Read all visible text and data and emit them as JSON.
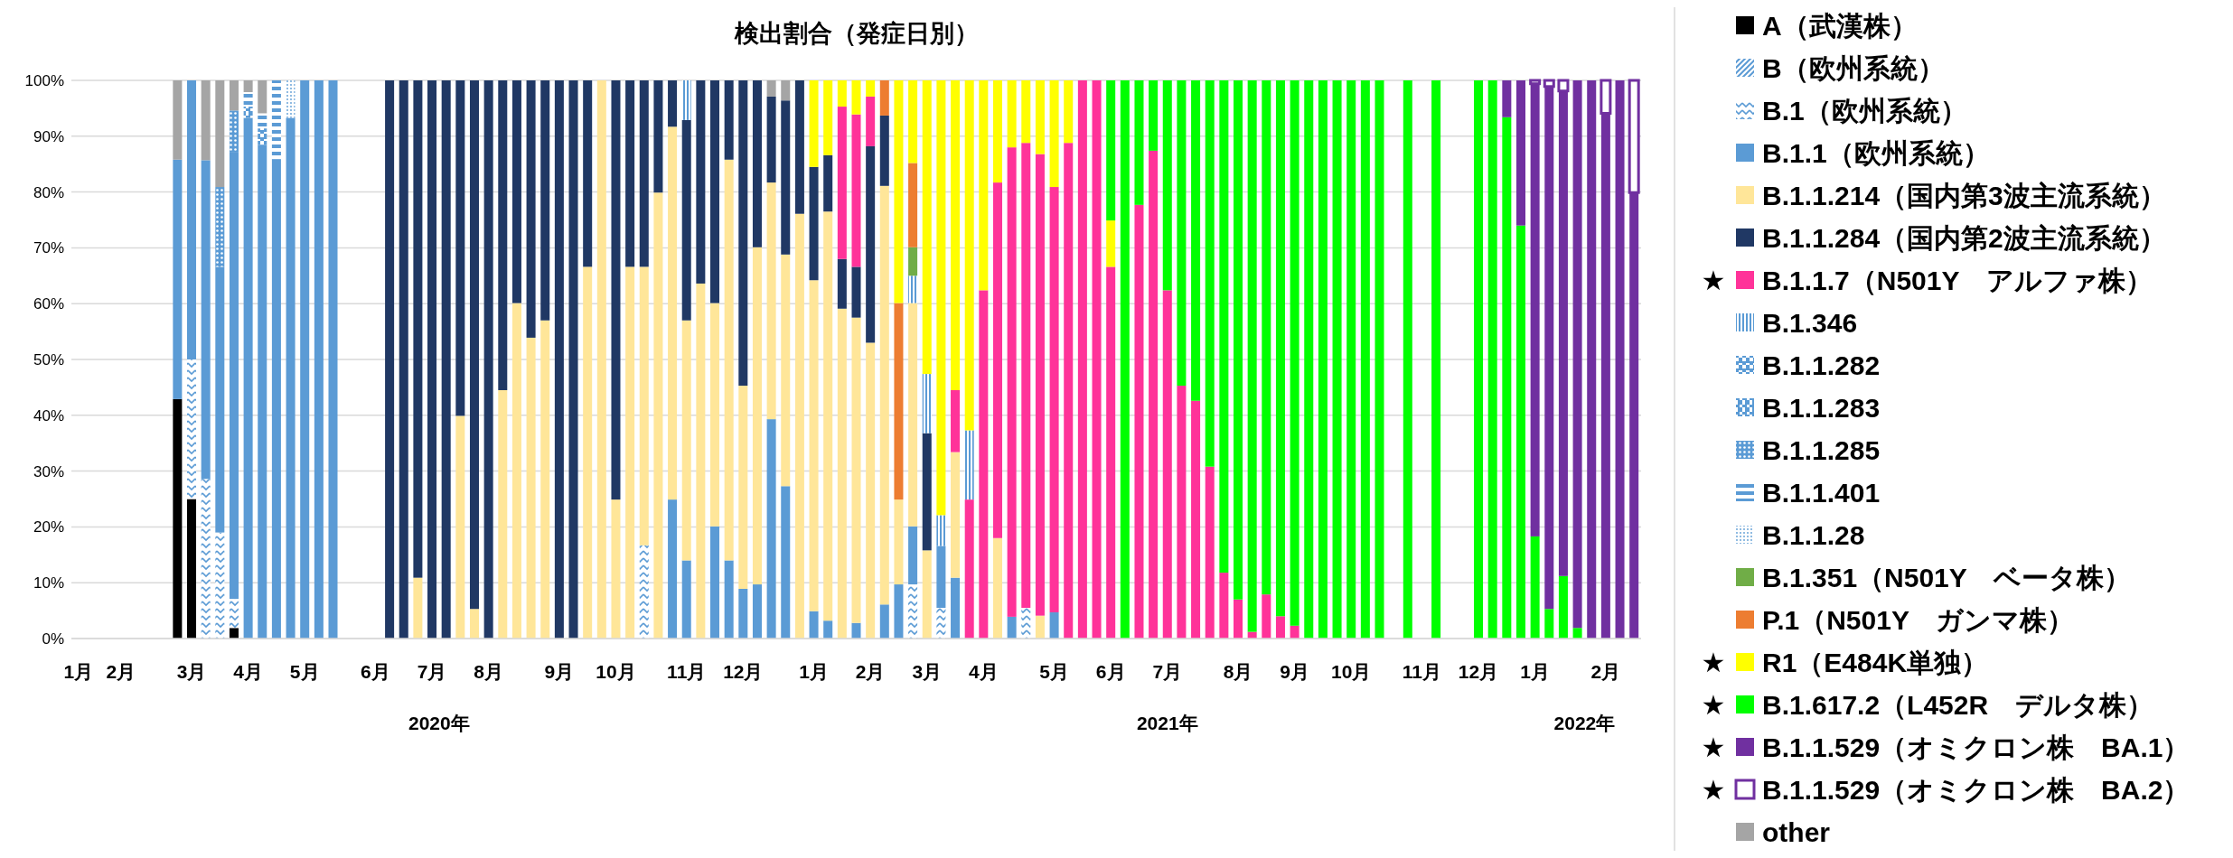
{
  "chart_data": {
    "type": "bar",
    "stacked": true,
    "title": "検出割合（発症日別）",
    "categories": [
      "1月",
      null,
      null,
      "2月",
      null,
      null,
      null,
      null,
      "3月",
      null,
      null,
      null,
      "4月",
      null,
      null,
      null,
      "5月",
      null,
      null,
      null,
      null,
      "6月",
      null,
      null,
      null,
      "7月",
      null,
      null,
      null,
      "8月",
      null,
      null,
      null,
      null,
      "9月",
      null,
      null,
      null,
      "10月",
      null,
      null,
      null,
      null,
      "11月",
      null,
      null,
      null,
      "12月",
      null,
      null,
      null,
      null,
      "1月",
      null,
      null,
      null,
      "2月",
      null,
      null,
      null,
      "3月",
      null,
      null,
      null,
      "4月",
      null,
      null,
      null,
      null,
      "5月",
      null,
      null,
      null,
      "6月",
      null,
      null,
      null,
      "7月",
      null,
      null,
      null,
      null,
      "8月",
      null,
      null,
      null,
      "9月",
      null,
      null,
      null,
      "10月",
      null,
      null,
      null,
      null,
      "11月",
      null,
      null,
      null,
      "12月",
      null,
      null,
      null,
      "1月",
      null,
      null,
      null,
      null,
      "2月",
      null,
      null
    ],
    "ylim": [
      0,
      100
    ],
    "yticks": [
      {
        "value": 0,
        "label": "0%"
      },
      {
        "value": 10,
        "label": "10%"
      },
      {
        "value": 20,
        "label": "20%"
      },
      {
        "value": 30,
        "label": "30%"
      },
      {
        "value": 40,
        "label": "40%"
      },
      {
        "value": 50,
        "label": "50%"
      },
      {
        "value": 60,
        "label": "60%"
      },
      {
        "value": 70,
        "label": "70%"
      },
      {
        "value": 80,
        "label": "80%"
      },
      {
        "value": 90,
        "label": "90%"
      },
      {
        "value": 100,
        "label": "100%"
      }
    ],
    "grid": "y",
    "legend": "right",
    "annotations": [
      "2020年",
      "2021年",
      "2022年"
    ],
    "series": [
      {
        "name": "A（武漢株）",
        "color": "#000000",
        "values": [
          null,
          null,
          null,
          null,
          null,
          null,
          null,
          42.9,
          25,
          null,
          null,
          1.9,
          null,
          null,
          null,
          null,
          null,
          null,
          null,
          null,
          null,
          null,
          null,
          null,
          null,
          null,
          null,
          null,
          null,
          null,
          null,
          null,
          null,
          null,
          null,
          null,
          null,
          null,
          null,
          null,
          null,
          null,
          null,
          null,
          null,
          null,
          null,
          null,
          null,
          null,
          null,
          null,
          null,
          null,
          null,
          null,
          null,
          null,
          null,
          null,
          null,
          null,
          null,
          null,
          null,
          null,
          null,
          null,
          null,
          null,
          null,
          null,
          null,
          null,
          null,
          null,
          null,
          null,
          null,
          null,
          null,
          null,
          null,
          null,
          null,
          null,
          null,
          null,
          null,
          null,
          null,
          null,
          null,
          null,
          null,
          null,
          null,
          null,
          null,
          null,
          null,
          null,
          null,
          null,
          null,
          null,
          null,
          null,
          null,
          null,
          null
        ]
      },
      {
        "name": "B（欧州系統）",
        "color": "#5b9bd5",
        "values": [
          null,
          null,
          null,
          null,
          null,
          null,
          null,
          null,
          null,
          null,
          null,
          null,
          null,
          null,
          null,
          null,
          null,
          null,
          null,
          null,
          null,
          null,
          null,
          null,
          null,
          null,
          null,
          null,
          null,
          null,
          null,
          null,
          null,
          null,
          null,
          null,
          null,
          null,
          null,
          null,
          null,
          null,
          null,
          null,
          null,
          null,
          null,
          null,
          null,
          null,
          null,
          null,
          null,
          null,
          null,
          null,
          null,
          null,
          null,
          null,
          null,
          null,
          null,
          null,
          null,
          null,
          null,
          null,
          null,
          null,
          null,
          null,
          null,
          null,
          null,
          null,
          null,
          null,
          null,
          null,
          null,
          null,
          null,
          null,
          null,
          null,
          null,
          null,
          null,
          null,
          null,
          null,
          null,
          null,
          null,
          null,
          null,
          null,
          null,
          null,
          null,
          null,
          null,
          null,
          null,
          null,
          null,
          null,
          null,
          null,
          null
        ]
      },
      {
        "name": "B.1（欧州系統）",
        "color": "#5b9bd5",
        "values": [
          null,
          null,
          null,
          null,
          null,
          null,
          null,
          null,
          25,
          28.6,
          19.0,
          5.2,
          null,
          null,
          null,
          null,
          null,
          null,
          null,
          null,
          null,
          null,
          null,
          null,
          null,
          null,
          null,
          null,
          null,
          null,
          null,
          null,
          null,
          null,
          null,
          null,
          null,
          null,
          null,
          null,
          16.7,
          null,
          null,
          null,
          null,
          null,
          null,
          null,
          null,
          null,
          null,
          null,
          null,
          null,
          null,
          null,
          null,
          null,
          null,
          9.7,
          null,
          5.5,
          null,
          null,
          null,
          null,
          null,
          5.5,
          null,
          null,
          null,
          null,
          null,
          null,
          null,
          null,
          null,
          null,
          null,
          null,
          null,
          null,
          null,
          null,
          null,
          null,
          null,
          null,
          null,
          null,
          null,
          null,
          null,
          null,
          null,
          null,
          null,
          null,
          null,
          null,
          null,
          null,
          null,
          null,
          null,
          null,
          null,
          null,
          null,
          null,
          null
        ]
      },
      {
        "name": "B.1.1（欧州系統）",
        "color": "#5b9bd5",
        "values": [
          null,
          null,
          null,
          null,
          null,
          null,
          null,
          42.9,
          50,
          57.1,
          47.6,
          80.1,
          93.3,
          88.4,
          85.8,
          93.3,
          100,
          100,
          100,
          null,
          null,
          null,
          null,
          null,
          null,
          null,
          null,
          null,
          null,
          null,
          null,
          null,
          null,
          null,
          null,
          null,
          null,
          null,
          null,
          null,
          null,
          null,
          24.9,
          14.0,
          null,
          20.1,
          14.0,
          8.9,
          9.7,
          39.3,
          27.3,
          null,
          4.9,
          3.2,
          null,
          2.8,
          null,
          6.1,
          9.7,
          10.4,
          null,
          11.1,
          10.9,
          null,
          null,
          null,
          3.9,
          null,
          null,
          4.7,
          null,
          null,
          null,
          null,
          null,
          null,
          null,
          null,
          null,
          null,
          null,
          null,
          null,
          null,
          null,
          null,
          null,
          null,
          null,
          null,
          null,
          null,
          null,
          null,
          null,
          null,
          null,
          null,
          null,
          null,
          null,
          null,
          null,
          null,
          null,
          null,
          null,
          null,
          null,
          null,
          null
        ]
      },
      {
        "name": "B.1.1.214（国内第3波主流系統）",
        "color": "#ffe699",
        "values": [
          null,
          null,
          null,
          null,
          null,
          null,
          null,
          null,
          null,
          null,
          null,
          null,
          null,
          null,
          null,
          null,
          null,
          null,
          null,
          null,
          null,
          null,
          null,
          null,
          10.9,
          null,
          null,
          39.9,
          5.3,
          null,
          44.5,
          60.1,
          53.9,
          57.0,
          null,
          null,
          66.6,
          100,
          24.9,
          66.6,
          49.9,
          79.9,
          66.8,
          43.0,
          63.6,
          40.0,
          71.8,
          36.4,
          60.4,
          42.4,
          41.5,
          76.1,
          59.3,
          73.3,
          59.1,
          54.7,
          53.0,
          75.0,
          15.2,
          40.0,
          15.8,
          null,
          22.5,
          null,
          null,
          18.0,
          null,
          null,
          4.1,
          null,
          null,
          null,
          null,
          null,
          null,
          null,
          null,
          null,
          null,
          null,
          null,
          null,
          null,
          null,
          null,
          null,
          null,
          null,
          null,
          null,
          null,
          null,
          null,
          null,
          null,
          null,
          null,
          null,
          null,
          null,
          null,
          null,
          null,
          null,
          null,
          null,
          null,
          null,
          null,
          null,
          null
        ]
      },
      {
        "name": "B.1.1.284（国内第2波主流系統）",
        "color": "#203864",
        "values": [
          null,
          null,
          null,
          null,
          null,
          null,
          null,
          null,
          null,
          null,
          null,
          null,
          null,
          null,
          null,
          null,
          null,
          null,
          null,
          null,
          null,
          null,
          100,
          100,
          89.1,
          100,
          100,
          60.1,
          94.7,
          100,
          55.5,
          39.9,
          46.1,
          43.0,
          100,
          100,
          33.4,
          null,
          75.1,
          33.4,
          33.4,
          20.1,
          8.3,
          35.9,
          36.4,
          39.9,
          14.2,
          54.7,
          29.9,
          15.4,
          27.6,
          23.9,
          20.3,
          10.1,
          8.9,
          9.1,
          35.2,
          12.6,
          null,
          null,
          21.0,
          null,
          null,
          null,
          null,
          null,
          null,
          null,
          null,
          null,
          null,
          null,
          null,
          null,
          null,
          null,
          null,
          null,
          null,
          null,
          null,
          null,
          null,
          null,
          null,
          null,
          null,
          null,
          null,
          null,
          null,
          null,
          null,
          null,
          null,
          null,
          null,
          null,
          null,
          null,
          null,
          null,
          null,
          null,
          null,
          null,
          null,
          null,
          null,
          null,
          null
        ]
      },
      {
        "name": "★ B.1.1.7（N501Y　アルファ株）",
        "color": "#ff3399",
        "values": [
          null,
          null,
          null,
          null,
          null,
          null,
          null,
          null,
          null,
          null,
          null,
          null,
          null,
          null,
          null,
          null,
          null,
          null,
          null,
          null,
          null,
          null,
          null,
          null,
          null,
          null,
          null,
          null,
          null,
          null,
          null,
          null,
          null,
          null,
          null,
          null,
          null,
          null,
          null,
          null,
          null,
          null,
          null,
          null,
          null,
          null,
          null,
          null,
          null,
          null,
          null,
          null,
          null,
          null,
          27.3,
          27.3,
          8.9,
          null,
          null,
          null,
          null,
          null,
          11.1,
          24.9,
          62.4,
          63.7,
          84.1,
          83.3,
          82.7,
          76.2,
          88.8,
          100,
          100,
          66.6,
          null,
          77.7,
          87.4,
          62.4,
          45.3,
          42.6,
          30.8,
          11.8,
          7.0,
          1.2,
          7.9,
          4.0,
          2.3,
          null,
          null,
          null,
          null,
          null,
          null,
          null,
          null,
          null,
          null,
          null,
          null,
          null,
          null,
          null,
          null,
          null,
          null,
          null,
          null,
          null,
          null,
          null,
          null
        ]
      },
      {
        "name": "B.1.346",
        "color": "#5b9bd5",
        "values": [
          null,
          null,
          null,
          null,
          null,
          null,
          null,
          null,
          null,
          null,
          null,
          null,
          null,
          null,
          null,
          null,
          null,
          null,
          null,
          null,
          null,
          null,
          null,
          null,
          null,
          null,
          null,
          null,
          null,
          null,
          null,
          null,
          null,
          null,
          null,
          null,
          null,
          null,
          null,
          null,
          null,
          null,
          null,
          7.1,
          null,
          null,
          null,
          null,
          null,
          null,
          null,
          null,
          null,
          null,
          null,
          null,
          null,
          null,
          null,
          4.9,
          10.6,
          5.5,
          null,
          12.4,
          null,
          null,
          null,
          null,
          null,
          null,
          null,
          null,
          null,
          null,
          null,
          null,
          null,
          null,
          null,
          null,
          null,
          null,
          null,
          null,
          null,
          null,
          null,
          null,
          null,
          null,
          null,
          null,
          null,
          null,
          null,
          null,
          null,
          null,
          null,
          null,
          null,
          null,
          null,
          null,
          null,
          null,
          null,
          null,
          null,
          null,
          null
        ]
      },
      {
        "name": "B.1.1.282",
        "color": "#5b9bd5",
        "values": [
          null,
          null,
          null,
          null,
          null,
          null,
          null,
          null,
          null,
          null,
          null,
          null,
          null,
          3.0,
          null,
          null,
          null,
          null,
          null,
          null,
          null,
          null,
          null,
          null,
          null,
          null,
          null,
          null,
          null,
          null,
          null,
          null,
          null,
          null,
          null,
          null,
          null,
          null,
          null,
          null,
          null,
          null,
          null,
          null,
          null,
          null,
          null,
          null,
          null,
          null,
          null,
          null,
          null,
          null,
          null,
          null,
          null,
          null,
          null,
          null,
          null,
          null,
          null,
          null,
          null,
          null,
          null,
          null,
          null,
          null,
          null,
          null,
          null,
          null,
          null,
          null,
          null,
          null,
          null,
          null,
          null,
          null,
          null,
          null,
          null,
          null,
          null,
          null,
          null,
          null,
          null,
          null,
          null,
          null,
          null,
          null,
          null,
          null,
          null,
          null,
          null,
          null,
          null,
          null,
          null,
          null,
          null,
          null,
          null,
          null,
          null
        ]
      },
      {
        "name": "B.1.1.283",
        "color": "#5b9bd5",
        "values": [
          null,
          null,
          null,
          null,
          null,
          null,
          null,
          null,
          null,
          null,
          null,
          null,
          2.0,
          null,
          null,
          null,
          null,
          null,
          null,
          null,
          null,
          null,
          null,
          null,
          null,
          null,
          null,
          null,
          null,
          null,
          null,
          null,
          null,
          null,
          null,
          null,
          null,
          null,
          null,
          null,
          null,
          null,
          null,
          null,
          null,
          null,
          null,
          null,
          null,
          null,
          null,
          null,
          null,
          null,
          null,
          null,
          null,
          null,
          null,
          null,
          null,
          null,
          null,
          null,
          null,
          null,
          null,
          null,
          null,
          null,
          null,
          null,
          null,
          null,
          null,
          null,
          null,
          null,
          null,
          null,
          null,
          null,
          null,
          null,
          null,
          null,
          null,
          null,
          null,
          null,
          null,
          null,
          null,
          null,
          null,
          null,
          null,
          null,
          null,
          null,
          null,
          null,
          null,
          null,
          null,
          null,
          null,
          null,
          null,
          null,
          null
        ]
      },
      {
        "name": "B.1.1.285",
        "color": "#5b9bd5",
        "values": [
          null,
          null,
          null,
          null,
          null,
          null,
          null,
          null,
          null,
          null,
          14.3,
          7.4,
          null,
          null,
          null,
          null,
          null,
          null,
          null,
          null,
          null,
          null,
          null,
          null,
          null,
          null,
          null,
          null,
          null,
          null,
          null,
          null,
          null,
          null,
          null,
          null,
          null,
          null,
          null,
          null,
          null,
          null,
          null,
          null,
          null,
          null,
          null,
          null,
          null,
          null,
          null,
          null,
          null,
          null,
          null,
          null,
          null,
          null,
          null,
          null,
          null,
          null,
          null,
          null,
          null,
          null,
          null,
          null,
          null,
          null,
          null,
          null,
          null,
          null,
          null,
          null,
          null,
          null,
          null,
          null,
          null,
          null,
          null,
          null,
          null,
          null,
          null,
          null,
          null,
          null,
          null,
          null,
          null,
          null,
          null,
          null,
          null,
          null,
          null,
          null,
          null,
          null,
          null,
          null,
          null,
          null,
          null,
          null,
          null,
          null,
          null
        ]
      },
      {
        "name": "B.1.1.401",
        "color": "#5b9bd5",
        "values": [
          null,
          null,
          null,
          null,
          null,
          null,
          null,
          null,
          null,
          null,
          null,
          null,
          2.6,
          2.7,
          14.2,
          null,
          null,
          null,
          null,
          null,
          null,
          null,
          null,
          null,
          null,
          null,
          null,
          null,
          null,
          null,
          null,
          null,
          null,
          null,
          null,
          null,
          null,
          null,
          null,
          null,
          null,
          null,
          null,
          null,
          null,
          null,
          null,
          null,
          null,
          null,
          null,
          null,
          null,
          null,
          null,
          null,
          null,
          null,
          null,
          null,
          null,
          null,
          null,
          null,
          null,
          null,
          null,
          null,
          null,
          null,
          null,
          null,
          null,
          null,
          null,
          null,
          null,
          null,
          null,
          null,
          null,
          null,
          null,
          null,
          null,
          null,
          null,
          null,
          null,
          null,
          null,
          null,
          null,
          null,
          null,
          null,
          null,
          null,
          null,
          null,
          null,
          null,
          null,
          null,
          null,
          null,
          null,
          null,
          null,
          null,
          null
        ]
      },
      {
        "name": "B.1.1.28",
        "color": "#5b9bd5",
        "values": [
          null,
          null,
          null,
          null,
          null,
          null,
          null,
          null,
          null,
          null,
          null,
          null,
          null,
          null,
          null,
          6.7,
          null,
          null,
          null,
          null,
          null,
          null,
          null,
          null,
          null,
          null,
          null,
          null,
          null,
          null,
          null,
          null,
          null,
          null,
          null,
          null,
          null,
          null,
          null,
          null,
          null,
          null,
          null,
          null,
          null,
          null,
          null,
          null,
          null,
          null,
          null,
          null,
          null,
          null,
          null,
          null,
          null,
          null,
          null,
          null,
          null,
          null,
          null,
          null,
          null,
          null,
          null,
          null,
          null,
          null,
          null,
          null,
          null,
          null,
          null,
          null,
          null,
          null,
          null,
          null,
          null,
          null,
          null,
          null,
          null,
          null,
          null,
          null,
          null,
          null,
          null,
          null,
          null,
          null,
          null,
          null,
          null,
          null,
          null,
          null,
          null,
          null,
          null,
          null,
          null,
          null,
          null,
          null,
          null,
          null,
          null
        ]
      },
      {
        "name": "B.1.351（N501Y　ベータ株）",
        "color": "#70ad47",
        "values": [
          null,
          null,
          null,
          null,
          null,
          null,
          null,
          null,
          null,
          null,
          null,
          null,
          null,
          null,
          null,
          null,
          null,
          null,
          null,
          null,
          null,
          null,
          null,
          null,
          null,
          null,
          null,
          null,
          null,
          null,
          null,
          null,
          null,
          null,
          null,
          null,
          null,
          null,
          null,
          null,
          null,
          null,
          null,
          null,
          null,
          null,
          null,
          null,
          null,
          null,
          null,
          null,
          null,
          null,
          null,
          null,
          null,
          null,
          null,
          5.1,
          null,
          null,
          null,
          null,
          null,
          null,
          null,
          null,
          null,
          null,
          null,
          null,
          null,
          null,
          null,
          null,
          null,
          null,
          null,
          null,
          null,
          null,
          null,
          null,
          null,
          null,
          null,
          null,
          null,
          null,
          null,
          null,
          null,
          null,
          null,
          null,
          null,
          null,
          null,
          null,
          null,
          null,
          null,
          null,
          null,
          null,
          null,
          null,
          null,
          null,
          null
        ]
      },
      {
        "name": "P.1（N501Y　ガンマ株）",
        "color": "#ed7d31",
        "values": [
          null,
          null,
          null,
          null,
          null,
          null,
          null,
          null,
          null,
          null,
          null,
          null,
          null,
          null,
          null,
          null,
          null,
          null,
          null,
          null,
          null,
          null,
          null,
          null,
          null,
          null,
          null,
          null,
          null,
          null,
          null,
          null,
          null,
          null,
          null,
          null,
          null,
          null,
          null,
          null,
          null,
          null,
          null,
          null,
          null,
          null,
          null,
          null,
          null,
          null,
          null,
          null,
          null,
          null,
          null,
          null,
          null,
          6.3,
          35.2,
          15.1,
          null,
          null,
          null,
          null,
          null,
          null,
          null,
          null,
          null,
          null,
          null,
          null,
          null,
          null,
          null,
          null,
          null,
          null,
          null,
          null,
          null,
          null,
          null,
          null,
          null,
          null,
          null,
          null,
          null,
          null,
          null,
          null,
          null,
          null,
          null,
          null,
          null,
          null,
          null,
          null,
          null,
          null,
          null,
          null,
          null,
          null,
          null,
          null,
          null,
          null,
          null
        ]
      },
      {
        "name": "★ R1（E484K単独）",
        "color": "#ffff00",
        "values": [
          null,
          null,
          null,
          null,
          null,
          null,
          null,
          null,
          null,
          null,
          null,
          null,
          null,
          null,
          null,
          null,
          null,
          null,
          null,
          null,
          null,
          null,
          null,
          null,
          null,
          null,
          null,
          null,
          null,
          null,
          null,
          null,
          null,
          null,
          null,
          null,
          null,
          null,
          null,
          null,
          null,
          null,
          null,
          null,
          null,
          null,
          null,
          null,
          null,
          null,
          null,
          null,
          15.5,
          13.4,
          4.7,
          6.1,
          2.9,
          null,
          39.9,
          14.8,
          52.6,
          77.9,
          55.5,
          62.7,
          37.6,
          18.3,
          12.0,
          11.2,
          13.2,
          19.1,
          11.2,
          null,
          null,
          8.3,
          null,
          null,
          null,
          null,
          null,
          null,
          null,
          null,
          null,
          null,
          null,
          null,
          null,
          null,
          null,
          null,
          null,
          null,
          null,
          null,
          null,
          null,
          null,
          null,
          null,
          null,
          null,
          null,
          null,
          null,
          null,
          null,
          null,
          null,
          null,
          null,
          null
        ]
      },
      {
        "name": "★ B.1.617.2（L452R　デルタ株）",
        "color": "#00ff00",
        "values": [
          null,
          null,
          null,
          null,
          null,
          null,
          null,
          null,
          null,
          null,
          null,
          null,
          null,
          null,
          null,
          null,
          null,
          null,
          null,
          null,
          null,
          null,
          null,
          null,
          null,
          null,
          null,
          null,
          null,
          null,
          null,
          null,
          null,
          null,
          null,
          null,
          null,
          null,
          null,
          null,
          null,
          null,
          null,
          null,
          null,
          null,
          null,
          null,
          null,
          null,
          null,
          null,
          null,
          null,
          null,
          null,
          null,
          null,
          null,
          null,
          null,
          null,
          null,
          null,
          null,
          null,
          null,
          null,
          null,
          null,
          null,
          null,
          null,
          25.1,
          100,
          22.3,
          12.6,
          37.6,
          54.7,
          57.4,
          69.2,
          88.2,
          93.0,
          98.8,
          92.1,
          96.0,
          97.7,
          100,
          100,
          100,
          100,
          100,
          100,
          null,
          100,
          null,
          100,
          null,
          null,
          100,
          100,
          93.4,
          74.0,
          18.3,
          5.3,
          11.2,
          1.9,
          null,
          null,
          null,
          null
        ]
      },
      {
        "name": "★ B.1.1.529（オミクロン株　BA.1）",
        "color": "#7030a0",
        "values": [
          null,
          null,
          null,
          null,
          null,
          null,
          null,
          null,
          null,
          null,
          null,
          null,
          null,
          null,
          null,
          null,
          null,
          null,
          null,
          null,
          null,
          null,
          null,
          null,
          null,
          null,
          null,
          null,
          null,
          null,
          null,
          null,
          null,
          null,
          null,
          null,
          null,
          null,
          null,
          null,
          null,
          null,
          null,
          null,
          null,
          null,
          null,
          null,
          null,
          null,
          null,
          null,
          null,
          null,
          null,
          null,
          null,
          null,
          null,
          null,
          null,
          null,
          null,
          null,
          null,
          null,
          null,
          null,
          null,
          null,
          null,
          null,
          null,
          null,
          null,
          null,
          null,
          null,
          null,
          null,
          null,
          null,
          null,
          null,
          null,
          null,
          null,
          null,
          null,
          null,
          null,
          null,
          null,
          null,
          null,
          null,
          null,
          null,
          null,
          null,
          null,
          6.6,
          26.0,
          81.1,
          93.6,
          86.9,
          98.1,
          100,
          94.1,
          100,
          79.9
        ]
      },
      {
        "name": "★ B.1.1.529（オミクロン株　BA.2）",
        "color": "#7030a0",
        "values": [
          null,
          null,
          null,
          null,
          null,
          null,
          null,
          null,
          null,
          null,
          null,
          null,
          null,
          null,
          null,
          null,
          null,
          null,
          null,
          null,
          null,
          null,
          null,
          null,
          null,
          null,
          null,
          null,
          null,
          null,
          null,
          null,
          null,
          null,
          null,
          null,
          null,
          null,
          null,
          null,
          null,
          null,
          null,
          null,
          null,
          null,
          null,
          null,
          null,
          null,
          null,
          null,
          null,
          null,
          null,
          null,
          null,
          null,
          null,
          null,
          null,
          null,
          null,
          null,
          null,
          null,
          null,
          null,
          null,
          null,
          null,
          null,
          null,
          null,
          null,
          null,
          null,
          null,
          null,
          null,
          null,
          null,
          null,
          null,
          null,
          null,
          null,
          null,
          null,
          null,
          null,
          null,
          null,
          null,
          null,
          null,
          null,
          null,
          null,
          null,
          null,
          null,
          null,
          0.6,
          1.1,
          1.9,
          null,
          null,
          5.9,
          null,
          20.1
        ]
      },
      {
        "name": "other",
        "color": "#a5a5a5",
        "values": [
          null,
          null,
          null,
          null,
          null,
          null,
          null,
          14.2,
          null,
          14.3,
          19.1,
          5.4,
          2.1,
          5.9,
          null,
          null,
          null,
          null,
          null,
          null,
          null,
          null,
          null,
          null,
          null,
          null,
          null,
          null,
          null,
          null,
          null,
          null,
          null,
          null,
          null,
          null,
          null,
          null,
          null,
          null,
          null,
          null,
          null,
          null,
          null,
          null,
          null,
          null,
          null,
          2.9,
          3.6,
          null,
          null,
          null,
          null,
          null,
          null,
          null,
          null,
          null,
          null,
          null,
          null,
          null,
          null,
          null,
          null,
          null,
          null,
          null,
          null,
          null,
          null,
          null,
          null,
          null,
          null,
          null,
          null,
          null,
          null,
          null,
          null,
          null,
          null,
          null,
          null,
          null,
          null,
          null,
          null,
          null,
          null,
          null,
          null,
          null,
          null,
          null,
          null,
          null,
          null,
          null,
          null,
          null,
          null,
          null,
          null,
          null,
          null,
          null,
          null
        ]
      }
    ]
  }
}
